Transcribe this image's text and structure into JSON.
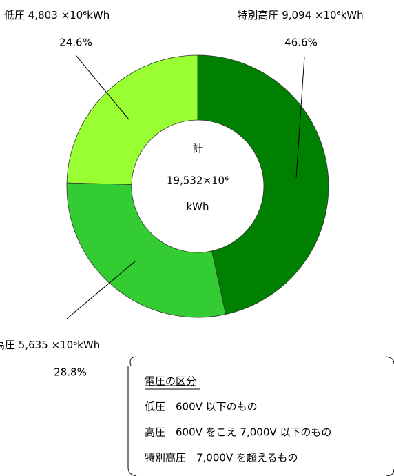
{
  "chart_data": {
    "type": "donut",
    "categories": [
      "特別高圧",
      "高圧",
      "低圧"
    ],
    "values": [
      9094,
      5635,
      4803
    ],
    "value_labels": [
      "9,094 ×10⁶kWh",
      "5,635 ×10⁶kWh",
      "4,803 ×10⁶kWh"
    ],
    "percentages": [
      46.6,
      28.8,
      24.6
    ],
    "percentage_labels": [
      "46.6%",
      "28.8%",
      "24.6%"
    ],
    "colors": [
      "#008000",
      "#33cc33",
      "#99ff33"
    ],
    "center_label": [
      "計",
      "19,532×10⁶",
      "kWh"
    ],
    "note": {
      "title": "電圧の区分",
      "lines": [
        "低圧　600V 以下のもの",
        "高圧　600V をこえ 7,000V 以下のもの",
        "特別高圧　7,000V を超えるもの"
      ]
    }
  }
}
